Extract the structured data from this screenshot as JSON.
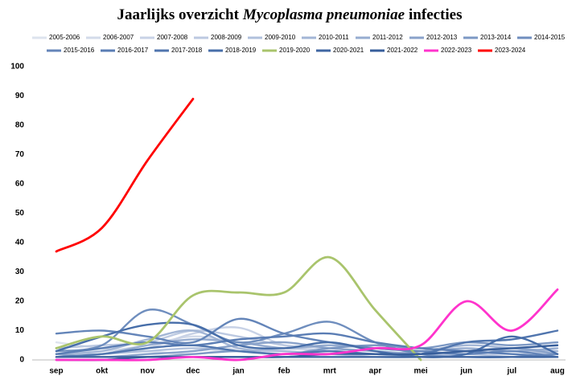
{
  "chart_data": {
    "type": "line",
    "title": "Jaarlijks overzicht",
    "title_italic": "Mycoplasma pneumoniae",
    "title_end": "infecties",
    "categories": [
      "sep",
      "okt",
      "nov",
      "dec",
      "jan",
      "feb",
      "mrt",
      "apr",
      "mei",
      "jun",
      "jul",
      "aug"
    ],
    "ylim": [
      0,
      100
    ],
    "yticks": [
      0,
      10,
      20,
      30,
      40,
      50,
      60,
      70,
      80,
      90,
      100
    ],
    "grid": false,
    "legend": "top",
    "series": [
      {
        "name": "2005-2006",
        "color": "#dde3ee",
        "values": [
          6,
          4,
          3,
          2,
          4,
          3,
          2,
          2,
          1,
          2,
          1,
          1
        ]
      },
      {
        "name": "2006-2007",
        "color": "#d3dbea",
        "values": [
          3,
          3,
          5,
          8,
          6,
          4,
          3,
          2,
          2,
          3,
          2,
          2
        ]
      },
      {
        "name": "2007-2008",
        "color": "#c8d2e6",
        "values": [
          2,
          2,
          4,
          9,
          11,
          5,
          3,
          2,
          1,
          2,
          2,
          1
        ]
      },
      {
        "name": "2008-2009",
        "color": "#bcc9e1",
        "values": [
          4,
          5,
          6,
          10,
          8,
          5,
          4,
          3,
          2,
          2,
          3,
          2
        ]
      },
      {
        "name": "2009-2010",
        "color": "#b0c0dc",
        "values": [
          1,
          2,
          3,
          4,
          3,
          2,
          2,
          1,
          1,
          2,
          1,
          1
        ]
      },
      {
        "name": "2010-2011",
        "color": "#a3b6d6",
        "values": [
          2,
          3,
          7,
          10,
          4,
          3,
          2,
          2,
          3,
          5,
          4,
          3
        ]
      },
      {
        "name": "2011-2012",
        "color": "#96acd0",
        "values": [
          1,
          2,
          5,
          7,
          6,
          4,
          5,
          4,
          3,
          4,
          3,
          4
        ]
      },
      {
        "name": "2012-2013",
        "color": "#89a2ca",
        "values": [
          2,
          1,
          2,
          3,
          5,
          6,
          4,
          3,
          2,
          3,
          4,
          2
        ]
      },
      {
        "name": "2013-2014",
        "color": "#7c98c4",
        "values": [
          1,
          1,
          1,
          2,
          3,
          2,
          4,
          5,
          4,
          6,
          5,
          6
        ]
      },
      {
        "name": "2014-2015",
        "color": "#6f8ebe",
        "values": [
          3,
          5,
          17,
          12,
          6,
          9,
          13,
          6,
          2,
          1,
          1,
          2
        ]
      },
      {
        "name": "2015-2016",
        "color": "#6485b9",
        "values": [
          9,
          10,
          8,
          6,
          14,
          9,
          6,
          4,
          3,
          2,
          3,
          1
        ]
      },
      {
        "name": "2016-2017",
        "color": "#5a7db4",
        "values": [
          2,
          4,
          6,
          5,
          7,
          8,
          9,
          6,
          4,
          3,
          2,
          1
        ]
      },
      {
        "name": "2017-2018",
        "color": "#5075ae",
        "values": [
          1,
          2,
          4,
          5,
          3,
          2,
          3,
          2,
          2,
          6,
          7,
          10
        ]
      },
      {
        "name": "2018-2019",
        "color": "#476ea9",
        "values": [
          3,
          8,
          12,
          12,
          5,
          4,
          6,
          3,
          1,
          2,
          8,
          2
        ]
      },
      {
        "name": "2019-2020",
        "color": "#a9c46c",
        "values": [
          4,
          8,
          6,
          22,
          23,
          23,
          35,
          17,
          0,
          null,
          null,
          null
        ]
      },
      {
        "name": "2020-2021",
        "color": "#3f66a2",
        "values": [
          1,
          1,
          1,
          1,
          1,
          1,
          1,
          1,
          1,
          1,
          1,
          1
        ]
      },
      {
        "name": "2021-2022",
        "color": "#375e9b",
        "values": [
          0,
          0,
          1,
          1,
          1,
          1,
          2,
          2,
          2,
          3,
          4,
          5
        ]
      },
      {
        "name": "2022-2023",
        "color": "#ff33cc",
        "values": [
          0,
          0,
          0,
          1,
          0,
          2,
          2,
          4,
          5,
          20,
          10,
          24
        ]
      },
      {
        "name": "2023-2024",
        "color": "#ff0000",
        "values": [
          37,
          45,
          68,
          89,
          null,
          null,
          null,
          null,
          null,
          null,
          null,
          null
        ]
      }
    ]
  }
}
